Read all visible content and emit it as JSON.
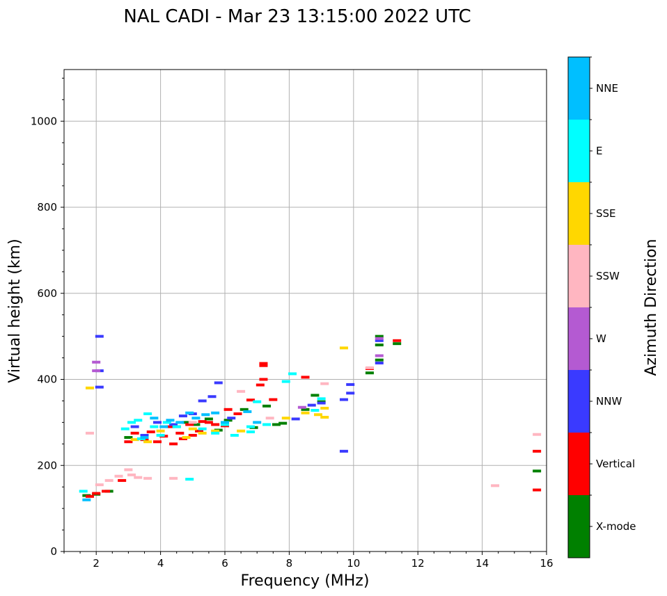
{
  "chart_data": {
    "type": "scatter",
    "title": "NAL CADI - Mar 23 13:15:00 2022 UTC",
    "xlabel": "Frequency (MHz)",
    "ylabel": "Virtual height (km)",
    "xlim": [
      1,
      16
    ],
    "ylim": [
      0,
      1120
    ],
    "xticks": [
      2,
      4,
      6,
      8,
      10,
      12,
      14,
      16
    ],
    "xtick_labels": [
      "2",
      "4",
      "6",
      "8",
      "10",
      "12",
      "14",
      "16"
    ],
    "yticks": [
      0,
      200,
      400,
      600,
      800,
      1000
    ],
    "ytick_labels": [
      "0",
      "200",
      "400",
      "600",
      "800",
      "1000"
    ],
    "grid": true,
    "colorbar": {
      "label": "Azimuth Direction",
      "categories": [
        {
          "name": "X-mode",
          "color": "#008000"
        },
        {
          "name": "Vertical",
          "color": "#ff0000"
        },
        {
          "name": "NNW",
          "color": "#3a3aff"
        },
        {
          "name": "W",
          "color": "#b45ad2"
        },
        {
          "name": "SSW",
          "color": "#ffb6c1"
        },
        {
          "name": "SSE",
          "color": "#ffd700"
        },
        {
          "name": "E",
          "color": "#00ffff"
        },
        {
          "name": "NNE",
          "color": "#00bfff"
        }
      ]
    },
    "series": [
      {
        "name": "X-mode",
        "points": [
          [
            1.7,
            130
          ],
          [
            2.0,
            133
          ],
          [
            2.4,
            140
          ],
          [
            3.0,
            265
          ],
          [
            3.5,
            268
          ],
          [
            4.5,
            290
          ],
          [
            4.8,
            300
          ],
          [
            5.1,
            295
          ],
          [
            5.5,
            308
          ],
          [
            5.8,
            282
          ],
          [
            6.1,
            305
          ],
          [
            6.6,
            330
          ],
          [
            6.9,
            288
          ],
          [
            7.3,
            338
          ],
          [
            7.6,
            295
          ],
          [
            7.8,
            298
          ],
          [
            8.5,
            330
          ],
          [
            8.8,
            363
          ],
          [
            9.0,
            348
          ],
          [
            10.5,
            415
          ],
          [
            10.8,
            445
          ],
          [
            10.8,
            480
          ],
          [
            10.8,
            500
          ],
          [
            11.35,
            483
          ],
          [
            15.7,
            187
          ]
        ]
      },
      {
        "name": "Vertical",
        "points": [
          [
            1.8,
            128
          ],
          [
            2.0,
            135
          ],
          [
            2.3,
            140
          ],
          [
            2.8,
            165
          ],
          [
            3.0,
            255
          ],
          [
            3.2,
            275
          ],
          [
            3.5,
            260
          ],
          [
            3.7,
            278
          ],
          [
            3.9,
            255
          ],
          [
            4.1,
            268
          ],
          [
            4.3,
            290
          ],
          [
            4.4,
            250
          ],
          [
            4.6,
            275
          ],
          [
            4.7,
            262
          ],
          [
            4.9,
            295
          ],
          [
            5.0,
            270
          ],
          [
            5.2,
            280
          ],
          [
            5.3,
            302
          ],
          [
            5.5,
            300
          ],
          [
            5.7,
            295
          ],
          [
            6.0,
            292
          ],
          [
            6.1,
            330
          ],
          [
            6.4,
            320
          ],
          [
            6.8,
            352
          ],
          [
            7.1,
            387
          ],
          [
            7.2,
            400
          ],
          [
            7.2,
            437
          ],
          [
            7.2,
            432
          ],
          [
            7.5,
            353
          ],
          [
            8.5,
            405
          ],
          [
            10.5,
            425
          ],
          [
            11.35,
            490
          ],
          [
            15.7,
            233
          ],
          [
            15.7,
            143
          ]
        ]
      },
      {
        "name": "NNW",
        "points": [
          [
            2.1,
            500
          ],
          [
            2.1,
            420
          ],
          [
            2.1,
            382
          ],
          [
            3.2,
            290
          ],
          [
            3.5,
            270
          ],
          [
            3.9,
            300
          ],
          [
            4.4,
            295
          ],
          [
            4.7,
            315
          ],
          [
            5.0,
            320
          ],
          [
            5.3,
            350
          ],
          [
            5.6,
            360
          ],
          [
            5.8,
            392
          ],
          [
            6.2,
            310
          ],
          [
            8.2,
            308
          ],
          [
            8.7,
            340
          ],
          [
            9.0,
            345
          ],
          [
            9.7,
            353
          ],
          [
            9.7,
            233
          ],
          [
            9.9,
            388
          ],
          [
            9.9,
            368
          ],
          [
            10.8,
            438
          ],
          [
            10.8,
            490
          ]
        ]
      },
      {
        "name": "W",
        "points": [
          [
            2.0,
            440
          ],
          [
            2.0,
            420
          ],
          [
            8.4,
            335
          ],
          [
            10.8,
            495
          ],
          [
            10.8,
            455
          ]
        ]
      },
      {
        "name": "SSW",
        "points": [
          [
            1.8,
            275
          ],
          [
            2.1,
            155
          ],
          [
            2.4,
            165
          ],
          [
            2.7,
            175
          ],
          [
            3.0,
            190
          ],
          [
            3.1,
            178
          ],
          [
            3.3,
            172
          ],
          [
            3.6,
            170
          ],
          [
            4.4,
            170
          ],
          [
            5.0,
            300
          ],
          [
            6.5,
            372
          ],
          [
            7.4,
            310
          ],
          [
            9.1,
            390
          ],
          [
            10.5,
            427
          ],
          [
            14.4,
            153
          ],
          [
            15.7,
            272
          ]
        ]
      },
      {
        "name": "SSE",
        "points": [
          [
            1.8,
            380
          ],
          [
            3.2,
            260
          ],
          [
            3.6,
            255
          ],
          [
            4.0,
            280
          ],
          [
            4.8,
            265
          ],
          [
            5.0,
            285
          ],
          [
            5.3,
            275
          ],
          [
            5.7,
            280
          ],
          [
            6.5,
            280
          ],
          [
            7.9,
            310
          ],
          [
            8.5,
            322
          ],
          [
            8.9,
            318
          ],
          [
            9.1,
            312
          ],
          [
            9.1,
            333
          ],
          [
            9.7,
            473
          ]
        ]
      },
      {
        "name": "E",
        "points": [
          [
            1.6,
            140
          ],
          [
            2.9,
            285
          ],
          [
            3.1,
            300
          ],
          [
            3.3,
            305
          ],
          [
            3.4,
            262
          ],
          [
            3.6,
            320
          ],
          [
            3.8,
            290
          ],
          [
            4.0,
            270
          ],
          [
            4.2,
            300
          ],
          [
            4.5,
            290
          ],
          [
            4.9,
            168
          ],
          [
            5.3,
            285
          ],
          [
            5.7,
            275
          ],
          [
            6.0,
            295
          ],
          [
            6.3,
            270
          ],
          [
            6.8,
            290
          ],
          [
            6.8,
            278
          ],
          [
            7.0,
            348
          ],
          [
            7.3,
            295
          ],
          [
            7.9,
            395
          ],
          [
            8.1,
            413
          ],
          [
            8.8,
            328
          ],
          [
            9.0,
            355
          ]
        ]
      },
      {
        "name": "NNE",
        "points": [
          [
            1.7,
            120
          ],
          [
            3.5,
            265
          ],
          [
            3.8,
            310
          ],
          [
            4.1,
            290
          ],
          [
            4.3,
            305
          ],
          [
            4.6,
            300
          ],
          [
            4.9,
            322
          ],
          [
            5.1,
            310
          ],
          [
            5.4,
            318
          ],
          [
            5.7,
            322
          ],
          [
            6.0,
            300
          ],
          [
            6.7,
            325
          ],
          [
            7.0,
            300
          ]
        ]
      }
    ]
  }
}
